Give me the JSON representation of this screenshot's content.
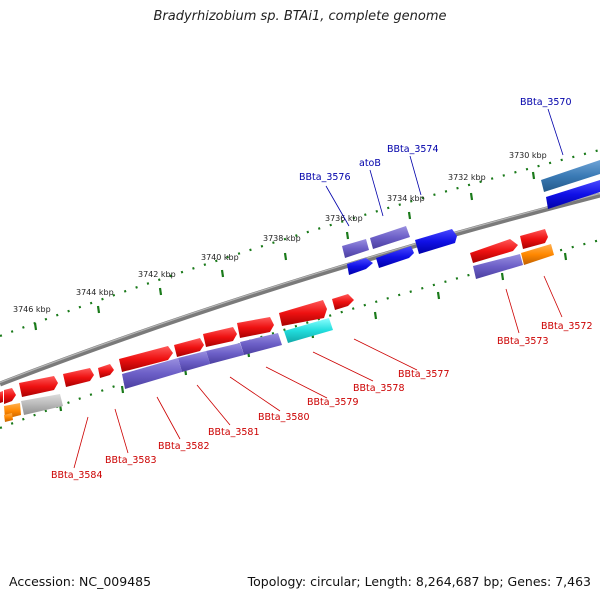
{
  "title": "Bradyrhizobium sp. BTAi1, complete genome",
  "footer": {
    "accession": "Accession: NC_009485",
    "summary": "Topology: circular; Length: 8,264,687 bp; Genes: 7,463"
  },
  "colors": {
    "red": "#ee1111",
    "purple": "#6c5fc7",
    "blue": "#1010e6",
    "steel": "#3a7ab5",
    "cyan": "#22dddd",
    "orange": "#ff8800",
    "gray": "#b0b0b0",
    "tick": "#1a7a1a",
    "label_blue": "#0000aa",
    "label_red": "#cc0000"
  },
  "kbp_labels": [
    "3746 kbp",
    "3744 kbp",
    "3742 kbp",
    "3740 kbp",
    "3738 kbp",
    "3736 kbp",
    "3734 kbp",
    "3732 kbp",
    "3730 kbp"
  ],
  "gene_labels_top": [
    "BBta_3570",
    "BBta_3574",
    "atoB",
    "BBta_3576"
  ],
  "gene_labels_bottom": [
    "BBta_3572",
    "BBta_3573",
    "BBta_3577",
    "BBta_3578",
    "BBta_3579",
    "BBta_3580",
    "BBta_3581",
    "BBta_3582",
    "BBta_3583",
    "BBta_3584"
  ]
}
